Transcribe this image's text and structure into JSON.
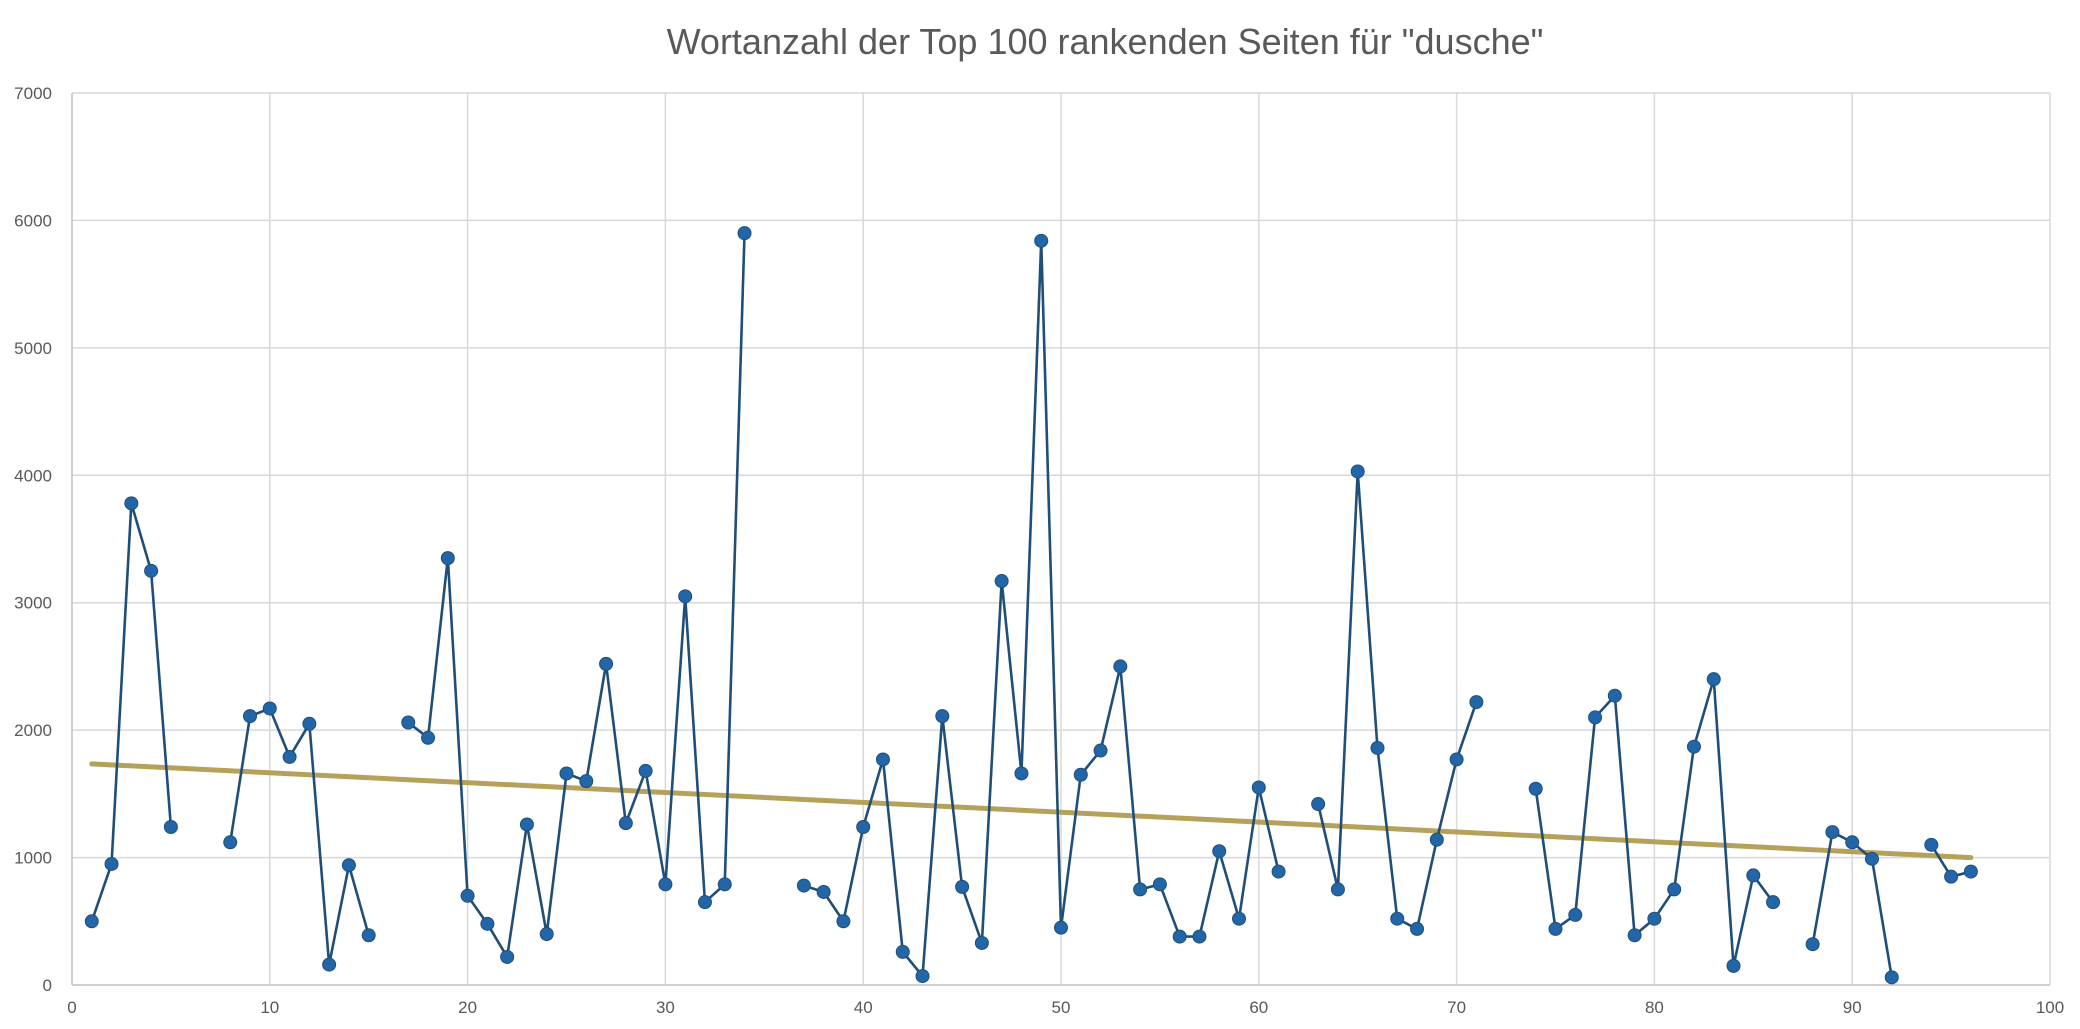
{
  "chart_data": {
    "type": "line",
    "title": "Wortanzahl der Top 100 rankenden Seiten für \"dusche\"",
    "xlabel": "",
    "ylabel": "",
    "xlim": [
      0,
      100
    ],
    "ylim": [
      0,
      7000
    ],
    "x_ticks": [
      0,
      10,
      20,
      30,
      40,
      50,
      60,
      70,
      80,
      90,
      100
    ],
    "y_ticks": [
      0,
      1000,
      2000,
      3000,
      4000,
      5000,
      6000,
      7000
    ],
    "grid": true,
    "legend": "none",
    "colors": {
      "series": "#1f4e79",
      "marker": "#2366a8",
      "trend": "#b5a15a",
      "grid": "#d9d9d9"
    },
    "series": [
      {
        "points": [
          [
            1,
            500
          ],
          [
            2,
            950
          ],
          [
            3,
            3780
          ],
          [
            4,
            3250
          ],
          [
            5,
            1240
          ],
          [
            8,
            1120
          ],
          [
            9,
            2110
          ],
          [
            10,
            2170
          ],
          [
            11,
            1790
          ],
          [
            12,
            2050
          ],
          [
            13,
            160
          ],
          [
            14,
            940
          ],
          [
            15,
            390
          ],
          [
            17,
            2060
          ],
          [
            18,
            1940
          ],
          [
            19,
            3350
          ],
          [
            20,
            700
          ],
          [
            21,
            480
          ],
          [
            22,
            220
          ],
          [
            23,
            1260
          ],
          [
            24,
            400
          ],
          [
            25,
            1660
          ],
          [
            26,
            1600
          ],
          [
            27,
            2520
          ],
          [
            28,
            1270
          ],
          [
            29,
            1680
          ],
          [
            30,
            790
          ],
          [
            31,
            3050
          ],
          [
            32,
            650
          ],
          [
            33,
            790
          ],
          [
            34,
            5900
          ],
          [
            37,
            780
          ],
          [
            38,
            730
          ],
          [
            39,
            500
          ],
          [
            40,
            1240
          ],
          [
            41,
            1770
          ],
          [
            42,
            260
          ],
          [
            43,
            70
          ],
          [
            44,
            2110
          ],
          [
            45,
            770
          ],
          [
            46,
            330
          ],
          [
            47,
            3170
          ],
          [
            48,
            1660
          ],
          [
            49,
            5840
          ],
          [
            50,
            450
          ],
          [
            51,
            1650
          ],
          [
            52,
            1840
          ],
          [
            53,
            2500
          ],
          [
            54,
            750
          ],
          [
            55,
            790
          ],
          [
            56,
            380
          ],
          [
            57,
            380
          ],
          [
            58,
            1050
          ],
          [
            59,
            520
          ],
          [
            60,
            1550
          ],
          [
            61,
            890
          ],
          [
            63,
            1420
          ],
          [
            64,
            750
          ],
          [
            65,
            4030
          ],
          [
            66,
            1860
          ],
          [
            67,
            520
          ],
          [
            68,
            440
          ],
          [
            69,
            1140
          ],
          [
            70,
            1770
          ],
          [
            71,
            2220
          ],
          [
            74,
            1540
          ],
          [
            75,
            440
          ],
          [
            76,
            550
          ],
          [
            77,
            2100
          ],
          [
            78,
            2270
          ],
          [
            79,
            390
          ],
          [
            80,
            520
          ],
          [
            81,
            750
          ],
          [
            82,
            1870
          ],
          [
            83,
            2400
          ],
          [
            84,
            150
          ],
          [
            85,
            860
          ],
          [
            86,
            650
          ],
          [
            88,
            320
          ],
          [
            89,
            1200
          ],
          [
            90,
            1120
          ],
          [
            91,
            990
          ],
          [
            92,
            60
          ],
          [
            94,
            1100
          ],
          [
            95,
            850
          ],
          [
            96,
            890
          ]
        ]
      }
    ],
    "trendline": {
      "type": "linear",
      "x": [
        1,
        96
      ],
      "y": [
        1735,
        1000
      ]
    }
  }
}
